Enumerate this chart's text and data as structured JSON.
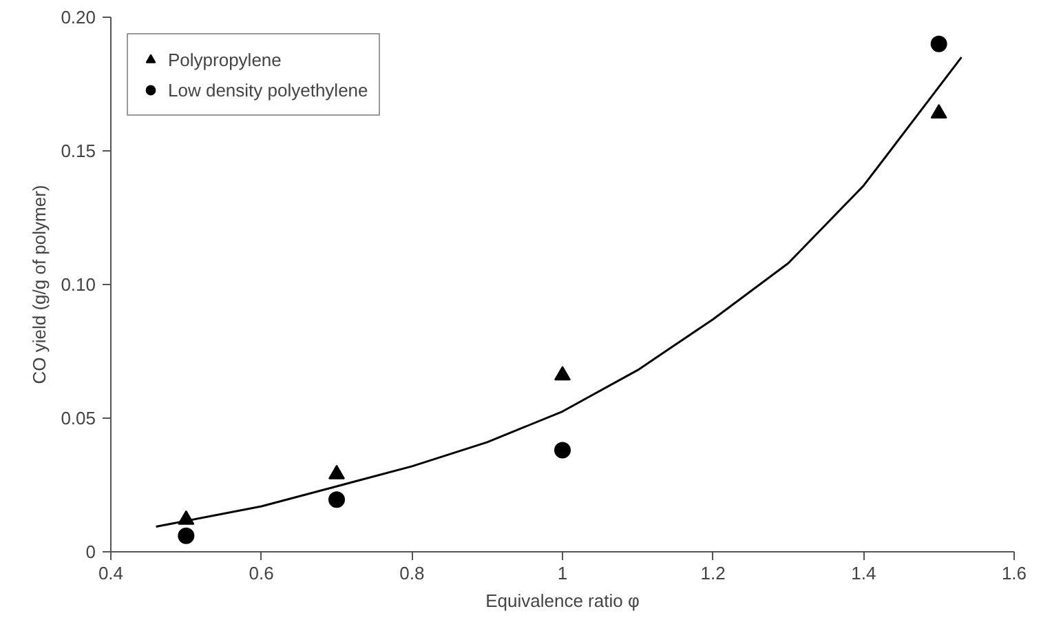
{
  "chart_data": {
    "type": "scatter",
    "xlabel": "Equivalence ratio φ",
    "ylabel": "CO yield (g/g of polymer)",
    "xlim": [
      0.4,
      1.6
    ],
    "ylim": [
      0,
      0.2
    ],
    "xticks": [
      0.4,
      0.6,
      0.8,
      {
        "value": 1,
        "label": "1"
      },
      1.2,
      1.4,
      1.6
    ],
    "yticks": [
      0,
      0.05,
      {
        "value": 0.1,
        "label": "0.10"
      },
      0.15,
      {
        "value": 0.2,
        "label": "0.20"
      }
    ],
    "grid": false,
    "legend": "top left",
    "series": [
      {
        "name": "Polypropylene",
        "color": "#000000",
        "marker": "triangle",
        "x": [
          0.5,
          0.7,
          1.0,
          1.5
        ],
        "values": [
          0.012,
          0.029,
          0.066,
          0.164
        ]
      },
      {
        "name": "Low density polyethylene",
        "color": "#000000",
        "marker": "circle",
        "x": [
          0.5,
          0.7,
          1.0,
          1.5
        ],
        "values": [
          0.006,
          0.0195,
          0.038,
          0.19
        ]
      },
      {
        "type": "line",
        "color": "#000000",
        "line_style": "solid",
        "x": [
          0.46,
          0.6,
          0.7,
          0.8,
          0.9,
          1.0,
          1.1,
          1.2,
          1.3,
          1.4,
          1.53
        ],
        "values": [
          0.0094,
          0.017,
          0.0245,
          0.032,
          0.041,
          0.0525,
          0.068,
          0.087,
          0.108,
          0.137,
          0.185
        ]
      }
    ]
  }
}
